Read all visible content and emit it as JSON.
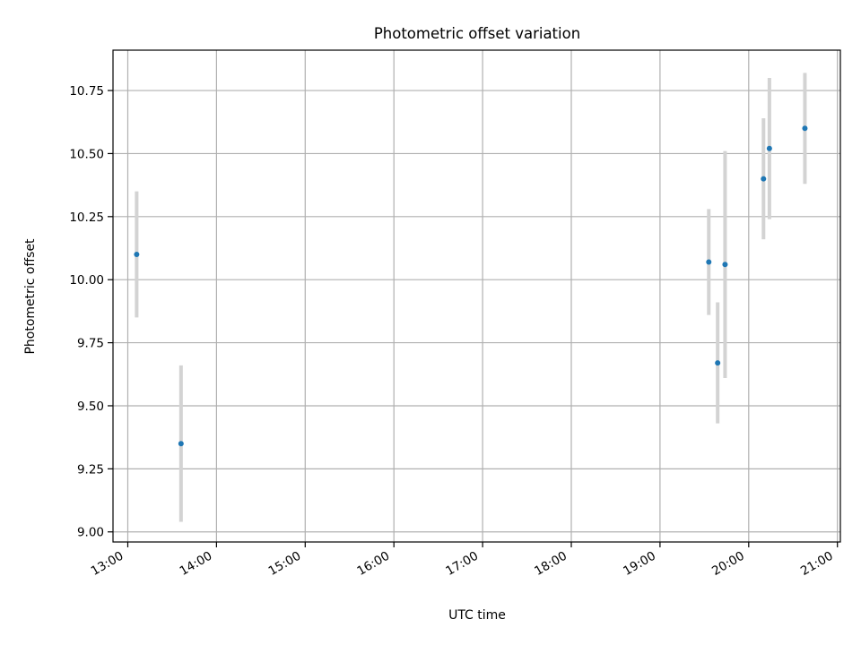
{
  "chart_data": {
    "type": "scatter",
    "title": "Photometric offset variation",
    "xlabel": "UTC time",
    "ylabel": "Photometric offset",
    "xlim": [
      "12:50",
      "21:02"
    ],
    "ylim": [
      8.96,
      10.91
    ],
    "x_ticks": [
      "13:00",
      "14:00",
      "15:00",
      "16:00",
      "17:00",
      "18:00",
      "19:00",
      "20:00",
      "21:00"
    ],
    "y_ticks": [
      "9.00",
      "9.25",
      "9.50",
      "9.75",
      "10.00",
      "10.25",
      "10.50",
      "10.75"
    ],
    "grid": true,
    "point_color": "#1f77b4",
    "errorbar_color": "#d3d3d3",
    "points": [
      {
        "time": "13:06",
        "y": 10.1,
        "err": 0.25
      },
      {
        "time": "13:36",
        "y": 9.35,
        "err": 0.31
      },
      {
        "time": "19:33",
        "y": 10.07,
        "err": 0.21
      },
      {
        "time": "19:39",
        "y": 9.67,
        "err": 0.24
      },
      {
        "time": "19:44",
        "y": 10.06,
        "err": 0.45
      },
      {
        "time": "20:10",
        "y": 10.4,
        "err": 0.24
      },
      {
        "time": "20:14",
        "y": 10.52,
        "err": 0.28
      },
      {
        "time": "20:38",
        "y": 10.6,
        "err": 0.22
      }
    ]
  }
}
